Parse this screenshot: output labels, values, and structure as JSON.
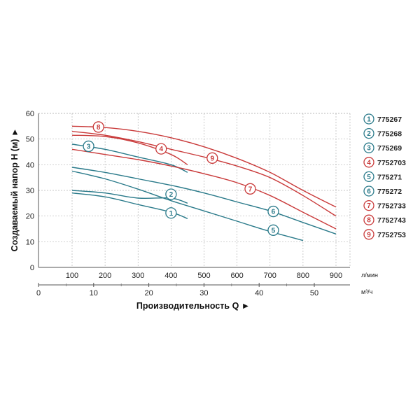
{
  "chart_data": {
    "type": "line",
    "xlabel": "Производительность Q ►",
    "ylabel": "Создаваемый напор H (м) ►",
    "x_unit_primary": "л/мин",
    "x_unit_secondary": "м³/ч",
    "xlim": [
      0,
      950
    ],
    "ylim": [
      0,
      60
    ],
    "x_ticks": [
      "100",
      "200",
      "300",
      "400",
      "500",
      "600",
      "700",
      "800",
      "900"
    ],
    "x2_ticks": [
      "0",
      "10",
      "20",
      "30",
      "40",
      "50"
    ],
    "y_ticks": [
      "0",
      "10",
      "20",
      "30",
      "40",
      "50",
      "60"
    ],
    "grid": true,
    "legend_position": "right",
    "series": [
      {
        "num": "1",
        "name": "775267",
        "color": "#2a7a8a",
        "marker_x": 400,
        "marker_y": 21.2,
        "x": [
          100,
          200,
          300,
          400,
          450
        ],
        "y": [
          29,
          27.5,
          24.5,
          21.5,
          19
        ]
      },
      {
        "num": "2",
        "name": "775268",
        "color": "#2a7a8a",
        "marker_x": 400,
        "marker_y": 28.5,
        "x": [
          100,
          200,
          300,
          400,
          450
        ],
        "y": [
          30,
          29,
          27,
          27,
          25
        ]
      },
      {
        "num": "3",
        "name": "775269",
        "color": "#2a7a8a",
        "marker_x": 150,
        "marker_y": 47.2,
        "x": [
          100,
          200,
          300,
          400,
          450
        ],
        "y": [
          48,
          46,
          43,
          40,
          37
        ]
      },
      {
        "num": "4",
        "name": "7752703",
        "color": "#c93a3a",
        "marker_x": 370,
        "marker_y": 46.2,
        "x": [
          100,
          200,
          300,
          400,
          450
        ],
        "y": [
          51.5,
          51,
          48.5,
          44,
          40
        ]
      },
      {
        "num": "5",
        "name": "775271",
        "color": "#2a7a8a",
        "marker_x": 710,
        "marker_y": 14.5,
        "x": [
          100,
          200,
          300,
          400,
          500,
          600,
          700,
          800
        ],
        "y": [
          37.5,
          34.5,
          30.5,
          26,
          22,
          18,
          14,
          10.5
        ]
      },
      {
        "num": "6",
        "name": "775272",
        "color": "#2a7a8a",
        "marker_x": 710,
        "marker_y": 21.8,
        "x": [
          100,
          200,
          300,
          400,
          500,
          600,
          700,
          800,
          900
        ],
        "y": [
          39,
          37,
          34.5,
          32,
          29,
          25.5,
          22,
          17.5,
          13
        ]
      },
      {
        "num": "7",
        "name": "7752733",
        "color": "#c93a3a",
        "marker_x": 640,
        "marker_y": 30.6,
        "x": [
          100,
          200,
          300,
          400,
          500,
          600,
          700,
          800,
          900
        ],
        "y": [
          46,
          44,
          42,
          39.5,
          36.5,
          33,
          28,
          21.5,
          15
        ]
      },
      {
        "num": "8",
        "name": "7752743",
        "color": "#c93a3a",
        "marker_x": 180,
        "marker_y": 54.7,
        "x": [
          100,
          200,
          300,
          400,
          500,
          600,
          700,
          800,
          900
        ],
        "y": [
          55,
          54.5,
          53,
          50.5,
          47,
          42.5,
          37,
          30,
          23.5
        ]
      },
      {
        "num": "9",
        "name": "7752753",
        "color": "#c93a3a",
        "marker_x": 525,
        "marker_y": 42.6,
        "x": [
          100,
          200,
          300,
          400,
          500,
          600,
          700,
          800,
          900
        ],
        "y": [
          53,
          51.5,
          49,
          46,
          43,
          39.5,
          35,
          28,
          20
        ]
      }
    ]
  }
}
